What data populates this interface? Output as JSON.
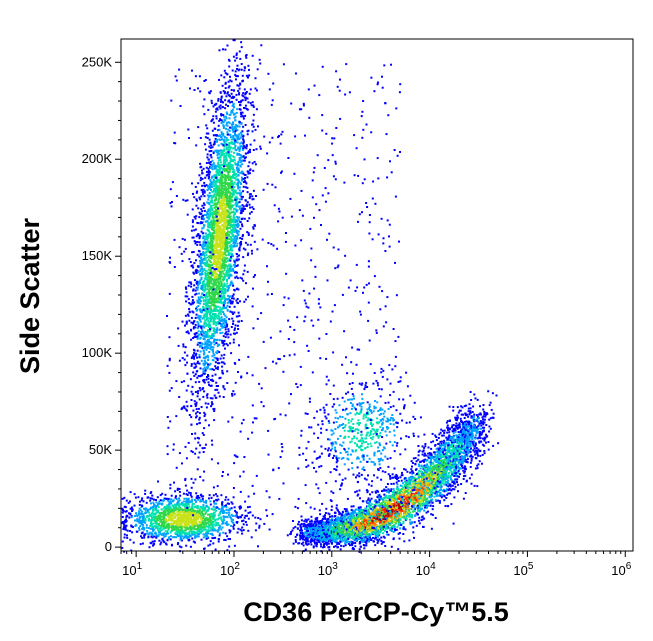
{
  "chart_data": {
    "type": "scatter",
    "subtype": "flow-cytometry-density-dotplot",
    "title": "",
    "xlabel": "CD36 PerCP-Cy™5.5",
    "ylabel": "Side Scatter",
    "xscale": "log",
    "yscale": "linear",
    "xlim": [
      7,
      1200000
    ],
    "ylim": [
      -2000,
      262000
    ],
    "grid": false,
    "legend": "none",
    "density_colors": [
      "#0000ff",
      "#00a2ff",
      "#00e0b0",
      "#2fd84a",
      "#c9e21a",
      "#ff9d00",
      "#ff2a00",
      "#b00000"
    ],
    "x_ticks": [
      {
        "value": 10,
        "base": "10",
        "exp": "1"
      },
      {
        "value": 100,
        "base": "10",
        "exp": "2"
      },
      {
        "value": 1000,
        "base": "10",
        "exp": "3"
      },
      {
        "value": 10000,
        "base": "10",
        "exp": "4"
      },
      {
        "value": 100000,
        "base": "10",
        "exp": "5"
      },
      {
        "value": 1000000,
        "base": "10",
        "exp": "6"
      }
    ],
    "y_ticks": [
      {
        "value": 0,
        "label": "0"
      },
      {
        "value": 50000,
        "label": "50K"
      },
      {
        "value": 100000,
        "label": "100K"
      },
      {
        "value": 150000,
        "label": "150K"
      },
      {
        "value": 200000,
        "label": "200K"
      },
      {
        "value": 250000,
        "label": "250K"
      }
    ],
    "populations": [
      {
        "name": "CD36-negative low-SSC cluster",
        "x_center": 30,
        "x_log_spread": 0.3,
        "y_center": 15000,
        "y_spread": 6000,
        "count": 1500,
        "peak_color": "#2fd84a"
      },
      {
        "name": "CD36-low high-SSC cluster",
        "x_center": 70,
        "x_log_spread": 0.12,
        "y_center": 160000,
        "y_spread": 40000,
        "count": 3500,
        "peak_color": "#00e0b0"
      },
      {
        "name": "CD36-intermediate mid-SSC cluster",
        "x_center": 2000,
        "x_log_spread": 0.25,
        "y_center": 60000,
        "y_spread": 14000,
        "count": 500,
        "peak_color": "#00a2ff"
      },
      {
        "name": "CD36-positive curved cluster",
        "x_range": [
          500,
          30000
        ],
        "y_start": 8000,
        "y_end": 65000,
        "peak_x": 4000,
        "peak_y": 12000,
        "count": 4500,
        "peak_color": "#ff2a00"
      },
      {
        "name": "scattered events",
        "x_range": [
          20,
          5000
        ],
        "y_range": [
          20000,
          250000
        ],
        "count": 600,
        "peak_color": "#0000ff"
      }
    ]
  }
}
